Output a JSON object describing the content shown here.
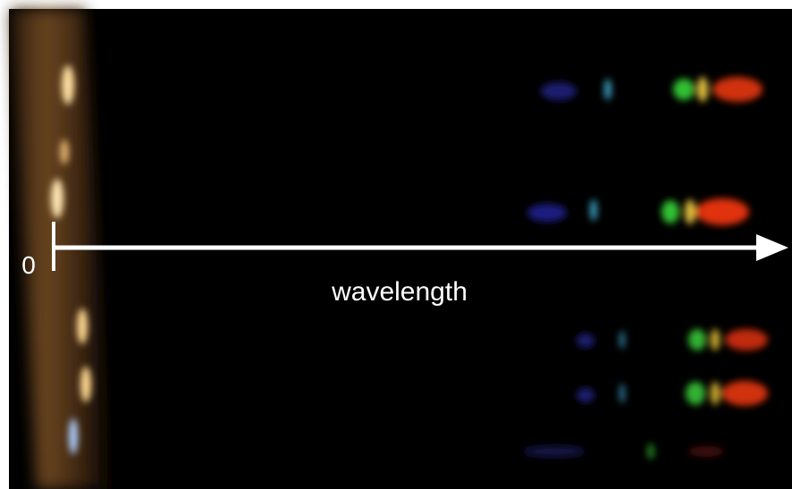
{
  "annotations": {
    "origin_label": "0",
    "axis_label": "wavelength"
  }
}
